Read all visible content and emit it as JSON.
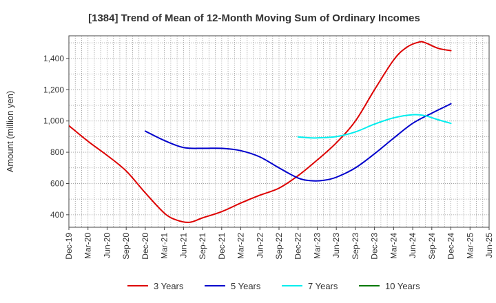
{
  "chart_data": {
    "type": "line",
    "title": "[1384]  Trend of Mean of 12-Month Moving Sum of Ordinary Incomes",
    "xlabel": "",
    "ylabel": "Amount (million yen)",
    "ylim": [
      320,
      1545
    ],
    "yticks": [
      400,
      600,
      800,
      1000,
      1200,
      1400
    ],
    "ytick_labels": [
      "400",
      "600",
      "800",
      "1,000",
      "1,200",
      "1,400"
    ],
    "x_range": [
      0,
      66
    ],
    "x_ticks": [
      {
        "label": "Dec-19",
        "x": 0
      },
      {
        "label": "Mar-20",
        "x": 3
      },
      {
        "label": "Jun-20",
        "x": 6
      },
      {
        "label": "Sep-20",
        "x": 9
      },
      {
        "label": "Dec-20",
        "x": 12
      },
      {
        "label": "Mar-21",
        "x": 15
      },
      {
        "label": "Jun-21",
        "x": 18
      },
      {
        "label": "Sep-21",
        "x": 21
      },
      {
        "label": "Dec-21",
        "x": 24
      },
      {
        "label": "Mar-22",
        "x": 27
      },
      {
        "label": "Jun-22",
        "x": 30
      },
      {
        "label": "Sep-22",
        "x": 33
      },
      {
        "label": "Dec-22",
        "x": 36
      },
      {
        "label": "Mar-23",
        "x": 39
      },
      {
        "label": "Jun-23",
        "x": 42
      },
      {
        "label": "Sep-23",
        "x": 45
      },
      {
        "label": "Dec-23",
        "x": 48
      },
      {
        "label": "Mar-24",
        "x": 51
      },
      {
        "label": "Jun-24",
        "x": 54
      },
      {
        "label": "Sep-24",
        "x": 57
      },
      {
        "label": "Dec-24",
        "x": 60
      },
      {
        "label": "Mar-25",
        "x": 63
      },
      {
        "label": "Jun-25",
        "x": 66
      }
    ],
    "grid": true,
    "legend_position": "bottom",
    "series": [
      {
        "name": "3 Years",
        "color": "#dd0000",
        "x": [
          0,
          3,
          6,
          9,
          12,
          15,
          17,
          19,
          21,
          24,
          27,
          30,
          33,
          36,
          39,
          42,
          45,
          48,
          51,
          53,
          55,
          56,
          58,
          60
        ],
        "y": [
          970,
          870,
          780,
          680,
          540,
          410,
          365,
          352,
          380,
          420,
          475,
          525,
          570,
          650,
          750,
          860,
          1000,
          1200,
          1390,
          1470,
          1505,
          1500,
          1465,
          1450
        ]
      },
      {
        "name": "5 Years",
        "color": "#0000cc",
        "x": [
          12,
          15,
          18,
          21,
          24,
          27,
          30,
          33,
          36,
          38,
          40,
          42,
          45,
          48,
          51,
          54,
          57,
          60
        ],
        "y": [
          935,
          875,
          830,
          825,
          825,
          810,
          770,
          700,
          635,
          618,
          620,
          640,
          700,
          790,
          890,
          985,
          1050,
          1110
        ]
      },
      {
        "name": "7 Years",
        "color": "#00eeee",
        "x": [
          36,
          38,
          39,
          42,
          45,
          48,
          51,
          54,
          56,
          58,
          60
        ],
        "y": [
          898,
          892,
          892,
          900,
          930,
          980,
          1020,
          1040,
          1033,
          1008,
          985
        ]
      },
      {
        "name": "10 Years",
        "color": "#007700",
        "x": [],
        "y": []
      }
    ]
  }
}
